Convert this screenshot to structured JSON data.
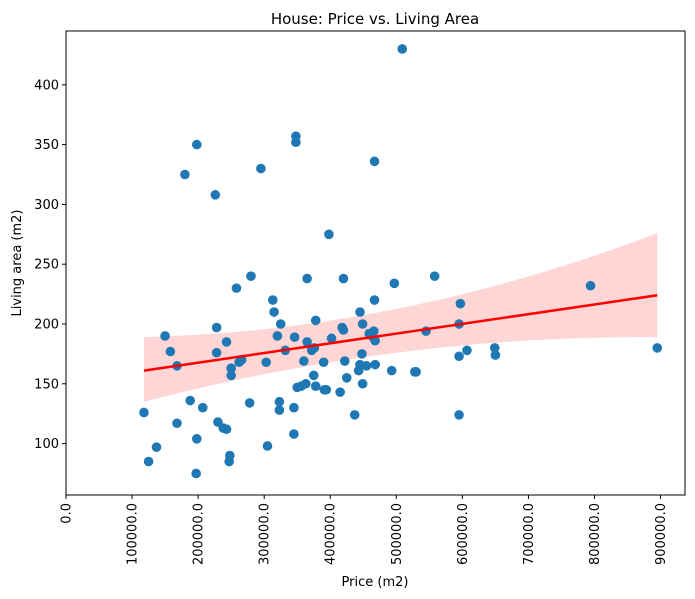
{
  "chart_data": {
    "type": "scatter",
    "title": "House: Price vs. Living Area",
    "xlabel": "Price (m2)",
    "ylabel": "Living area (m2)",
    "xlim": [
      0,
      937000
    ],
    "ylim": [
      57,
      445
    ],
    "x_ticks": [
      0,
      100000,
      200000,
      300000,
      400000,
      500000,
      600000,
      700000,
      800000,
      900000
    ],
    "x_tick_labels": [
      "0.0",
      "100000.0",
      "200000.0",
      "300000.0",
      "400000.0",
      "500000.0",
      "600000.0",
      "700000.0",
      "800000.0",
      "900000.0"
    ],
    "y_ticks": [
      100,
      150,
      200,
      250,
      300,
      350,
      400
    ],
    "y_tick_labels": [
      "100",
      "150",
      "200",
      "250",
      "300",
      "350",
      "400"
    ],
    "grid": false,
    "colors": {
      "points": "#1f77b4",
      "regression_line": "#ff0000",
      "confidence_band": "#ffd6d6"
    },
    "regression": {
      "x": [
        118000,
        895000
      ],
      "y": [
        161,
        224
      ],
      "ci_upper": [
        189,
        276
      ],
      "ci_lower": [
        135,
        189
      ]
    },
    "points": [
      [
        118000,
        126
      ],
      [
        125000,
        85
      ],
      [
        137000,
        97
      ],
      [
        150000,
        190
      ],
      [
        158000,
        177
      ],
      [
        168000,
        165
      ],
      [
        168000,
        117
      ],
      [
        180000,
        325
      ],
      [
        188000,
        136
      ],
      [
        198000,
        350
      ],
      [
        198000,
        104
      ],
      [
        197000,
        75
      ],
      [
        207000,
        130
      ],
      [
        226000,
        308
      ],
      [
        228000,
        197
      ],
      [
        228000,
        176
      ],
      [
        230000,
        118
      ],
      [
        238000,
        113
      ],
      [
        243000,
        185
      ],
      [
        243000,
        112
      ],
      [
        247000,
        85
      ],
      [
        248000,
        90
      ],
      [
        250000,
        157
      ],
      [
        250000,
        163
      ],
      [
        258000,
        230
      ],
      [
        262000,
        168
      ],
      [
        266000,
        170
      ],
      [
        278000,
        134
      ],
      [
        280000,
        240
      ],
      [
        295000,
        330
      ],
      [
        303000,
        168
      ],
      [
        305000,
        98
      ],
      [
        313000,
        220
      ],
      [
        315000,
        210
      ],
      [
        320000,
        190
      ],
      [
        323000,
        135
      ],
      [
        323000,
        128
      ],
      [
        325000,
        200
      ],
      [
        332000,
        178
      ],
      [
        345000,
        108
      ],
      [
        345000,
        130
      ],
      [
        346000,
        189
      ],
      [
        348000,
        352
      ],
      [
        348000,
        357
      ],
      [
        350000,
        147
      ],
      [
        356000,
        148
      ],
      [
        360000,
        169
      ],
      [
        363000,
        150
      ],
      [
        365000,
        238
      ],
      [
        365000,
        185
      ],
      [
        372000,
        178
      ],
      [
        375000,
        157
      ],
      [
        376000,
        180
      ],
      [
        378000,
        203
      ],
      [
        378000,
        148
      ],
      [
        390000,
        168
      ],
      [
        391000,
        145
      ],
      [
        394000,
        145
      ],
      [
        398000,
        275
      ],
      [
        402000,
        188
      ],
      [
        415000,
        143
      ],
      [
        418000,
        197
      ],
      [
        420000,
        195
      ],
      [
        420000,
        238
      ],
      [
        422000,
        169
      ],
      [
        425000,
        155
      ],
      [
        437000,
        124
      ],
      [
        443000,
        161
      ],
      [
        445000,
        166
      ],
      [
        445000,
        210
      ],
      [
        448000,
        175
      ],
      [
        449000,
        200
      ],
      [
        449000,
        150
      ],
      [
        455000,
        165
      ],
      [
        459000,
        192
      ],
      [
        463000,
        190
      ],
      [
        466000,
        194
      ],
      [
        467000,
        220
      ],
      [
        467000,
        336
      ],
      [
        468000,
        186
      ],
      [
        468000,
        166
      ],
      [
        493000,
        161
      ],
      [
        497000,
        234
      ],
      [
        509000,
        430
      ],
      [
        528000,
        160
      ],
      [
        530000,
        160
      ],
      [
        545000,
        194
      ],
      [
        558000,
        240
      ],
      [
        595000,
        200
      ],
      [
        595000,
        173
      ],
      [
        595000,
        124
      ],
      [
        597000,
        217
      ],
      [
        607000,
        178
      ],
      [
        649000,
        180
      ],
      [
        650000,
        174
      ],
      [
        794000,
        232
      ],
      [
        895000,
        180
      ]
    ]
  }
}
